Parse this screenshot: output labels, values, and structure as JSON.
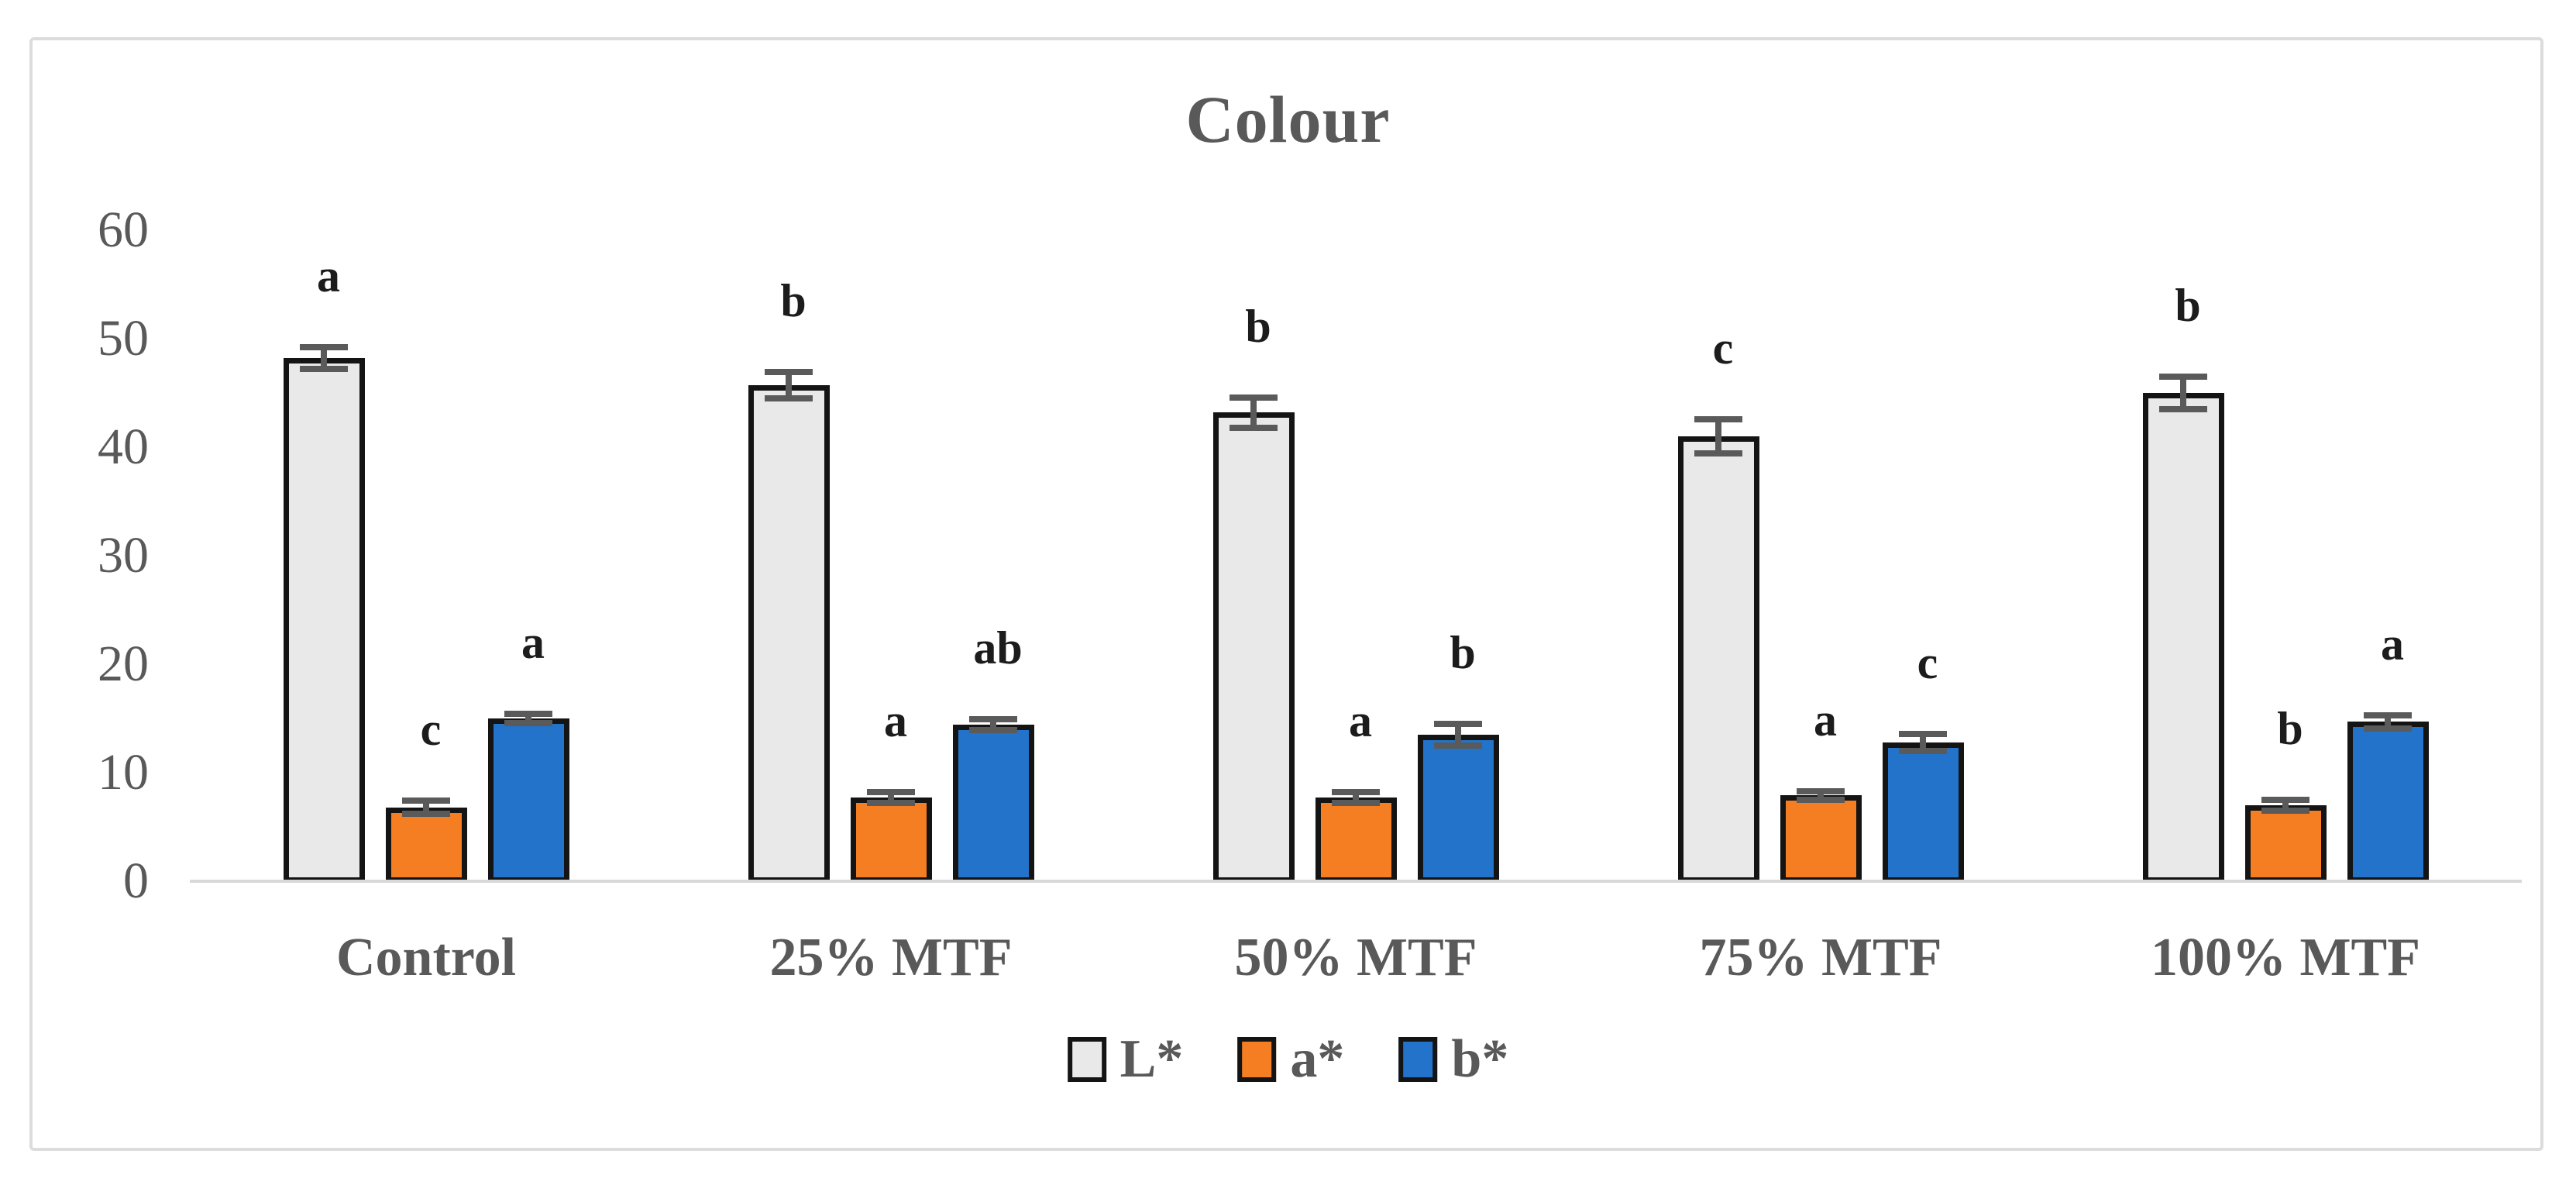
{
  "figure": {
    "title": "Colour"
  },
  "chart_data": {
    "type": "bar",
    "title": "Colour",
    "categories": [
      "Control",
      "25% MTF",
      "50% MTF",
      "75% MTF",
      "100% MTF"
    ],
    "series": [
      {
        "name": "L*",
        "color": "#E9E9E9",
        "values": [
          48.2,
          45.7,
          43.2,
          41.0,
          45.0
        ],
        "errors": [
          1.0,
          1.2,
          1.4,
          1.6,
          1.5
        ],
        "letters": [
          "a",
          "b",
          "b",
          "c",
          "b"
        ]
      },
      {
        "name": "a*",
        "color": "#F57E22",
        "values": [
          6.8,
          7.7,
          7.7,
          7.9,
          7.0
        ],
        "errors": [
          0.6,
          0.5,
          0.5,
          0.4,
          0.5
        ],
        "letters": [
          "c",
          "a",
          "a",
          "a",
          "b"
        ]
      },
      {
        "name": "b*",
        "color": "#2273C9",
        "values": [
          15.0,
          14.4,
          13.5,
          12.8,
          14.7
        ],
        "errors": [
          0.4,
          0.5,
          1.0,
          0.8,
          0.6
        ],
        "letters": [
          "a",
          "ab",
          "b",
          "c",
          "a"
        ]
      }
    ],
    "ylim": [
      0,
      60
    ],
    "yticks": [
      0,
      10,
      20,
      30,
      40,
      50,
      60
    ],
    "xlabel": "",
    "ylabel": "",
    "grid": false,
    "legend_position": "bottom"
  },
  "legend": {
    "items": [
      {
        "label": "L*",
        "color": "#E9E9E9"
      },
      {
        "label": "a*",
        "color": "#F57E22"
      },
      {
        "label": "b*",
        "color": "#2273C9"
      }
    ]
  },
  "colors": {
    "text": "#595959",
    "letter": "#1c1c1c",
    "bar_border": "#141414",
    "error_bar": "#5a5a5a",
    "axis_line": "#d8d8d8",
    "frame_border": "#dcdcdc",
    "background": "#ffffff"
  }
}
